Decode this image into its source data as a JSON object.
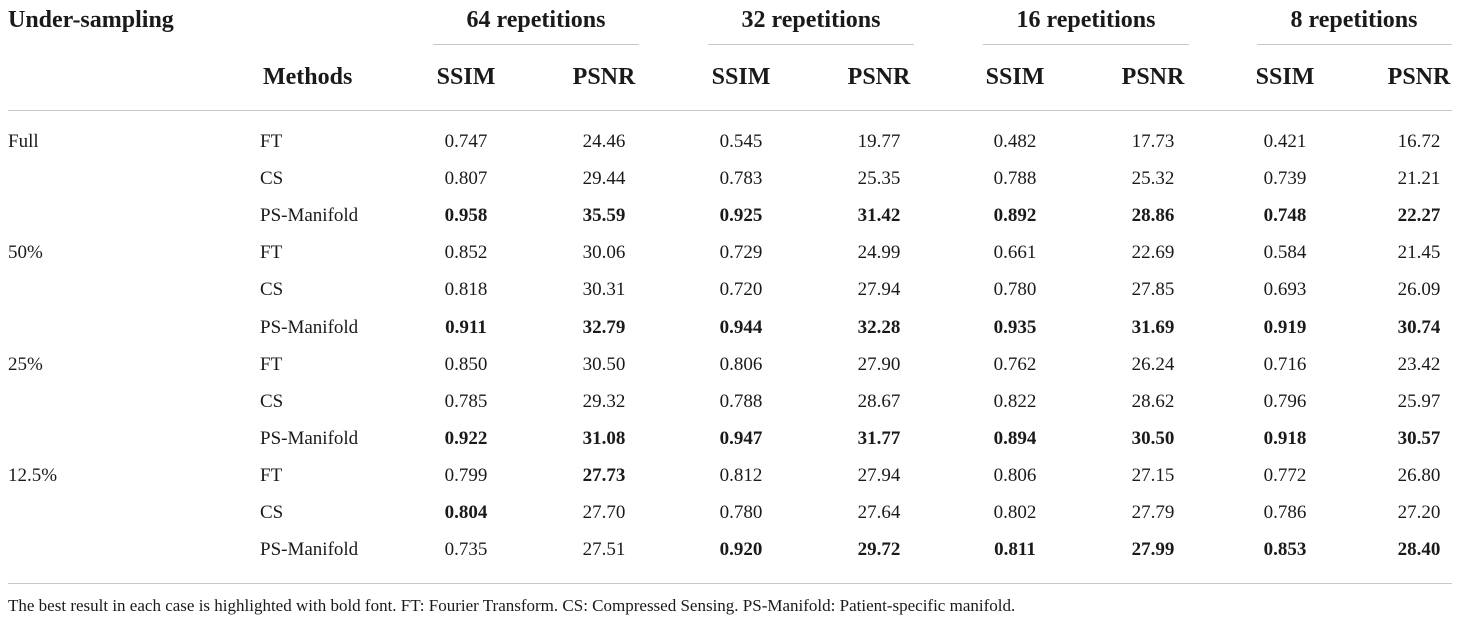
{
  "table": {
    "header": {
      "undersampling_label": "Under-sampling",
      "methods_label": "Methods",
      "groups": [
        "64 repetitions",
        "32 repetitions",
        "16 repetitions",
        "8 repetitions"
      ],
      "subcolumns": [
        "SSIM",
        "PSNR",
        "SSIM",
        "PSNR",
        "SSIM",
        "PSNR",
        "SSIM",
        "PSNR"
      ]
    },
    "rows": [
      {
        "sampling": "Full",
        "method": "FT",
        "values": [
          "0.747",
          "24.46",
          "0.545",
          "19.77",
          "0.482",
          "17.73",
          "0.421",
          "16.72"
        ],
        "bold": [
          false,
          false,
          false,
          false,
          false,
          false,
          false,
          false
        ]
      },
      {
        "sampling": "",
        "method": "CS",
        "values": [
          "0.807",
          "29.44",
          "0.783",
          "25.35",
          "0.788",
          "25.32",
          "0.739",
          "21.21"
        ],
        "bold": [
          false,
          false,
          false,
          false,
          false,
          false,
          false,
          false
        ]
      },
      {
        "sampling": "",
        "method": "PS-Manifold",
        "values": [
          "0.958",
          "35.59",
          "0.925",
          "31.42",
          "0.892",
          "28.86",
          "0.748",
          "22.27"
        ],
        "bold": [
          true,
          true,
          true,
          true,
          true,
          true,
          true,
          true
        ]
      },
      {
        "sampling": "50%",
        "method": "FT",
        "values": [
          "0.852",
          "30.06",
          "0.729",
          "24.99",
          "0.661",
          "22.69",
          "0.584",
          "21.45"
        ],
        "bold": [
          false,
          false,
          false,
          false,
          false,
          false,
          false,
          false
        ]
      },
      {
        "sampling": "",
        "method": "CS",
        "values": [
          "0.818",
          "30.31",
          "0.720",
          "27.94",
          "0.780",
          "27.85",
          "0.693",
          "26.09"
        ],
        "bold": [
          false,
          false,
          false,
          false,
          false,
          false,
          false,
          false
        ]
      },
      {
        "sampling": "",
        "method": "PS-Manifold",
        "values": [
          "0.911",
          "32.79",
          "0.944",
          "32.28",
          "0.935",
          "31.69",
          "0.919",
          "30.74"
        ],
        "bold": [
          true,
          true,
          true,
          true,
          true,
          true,
          true,
          true
        ]
      },
      {
        "sampling": "25%",
        "method": "FT",
        "values": [
          "0.850",
          "30.50",
          "0.806",
          "27.90",
          "0.762",
          "26.24",
          "0.716",
          "23.42"
        ],
        "bold": [
          false,
          false,
          false,
          false,
          false,
          false,
          false,
          false
        ]
      },
      {
        "sampling": "",
        "method": "CS",
        "values": [
          "0.785",
          "29.32",
          "0.788",
          "28.67",
          "0.822",
          "28.62",
          "0.796",
          "25.97"
        ],
        "bold": [
          false,
          false,
          false,
          false,
          false,
          false,
          false,
          false
        ]
      },
      {
        "sampling": "",
        "method": "PS-Manifold",
        "values": [
          "0.922",
          "31.08",
          "0.947",
          "31.77",
          "0.894",
          "30.50",
          "0.918",
          "30.57"
        ],
        "bold": [
          true,
          true,
          true,
          true,
          true,
          true,
          true,
          true
        ]
      },
      {
        "sampling": "12.5%",
        "method": "FT",
        "values": [
          "0.799",
          "27.73",
          "0.812",
          "27.94",
          "0.806",
          "27.15",
          "0.772",
          "26.80"
        ],
        "bold": [
          false,
          true,
          false,
          false,
          false,
          false,
          false,
          false
        ]
      },
      {
        "sampling": "",
        "method": "CS",
        "values": [
          "0.804",
          "27.70",
          "0.780",
          "27.64",
          "0.802",
          "27.79",
          "0.786",
          "27.20"
        ],
        "bold": [
          true,
          false,
          false,
          false,
          false,
          false,
          false,
          false
        ]
      },
      {
        "sampling": "",
        "method": "PS-Manifold",
        "values": [
          "0.735",
          "27.51",
          "0.920",
          "29.72",
          "0.811",
          "27.99",
          "0.853",
          "28.40"
        ],
        "bold": [
          false,
          false,
          true,
          true,
          true,
          true,
          true,
          true
        ]
      }
    ],
    "footnote": "The best result in each case is highlighted with bold font. FT: Fourier Transform. CS: Compressed Sensing. PS-Manifold: Patient-specific manifold."
  }
}
